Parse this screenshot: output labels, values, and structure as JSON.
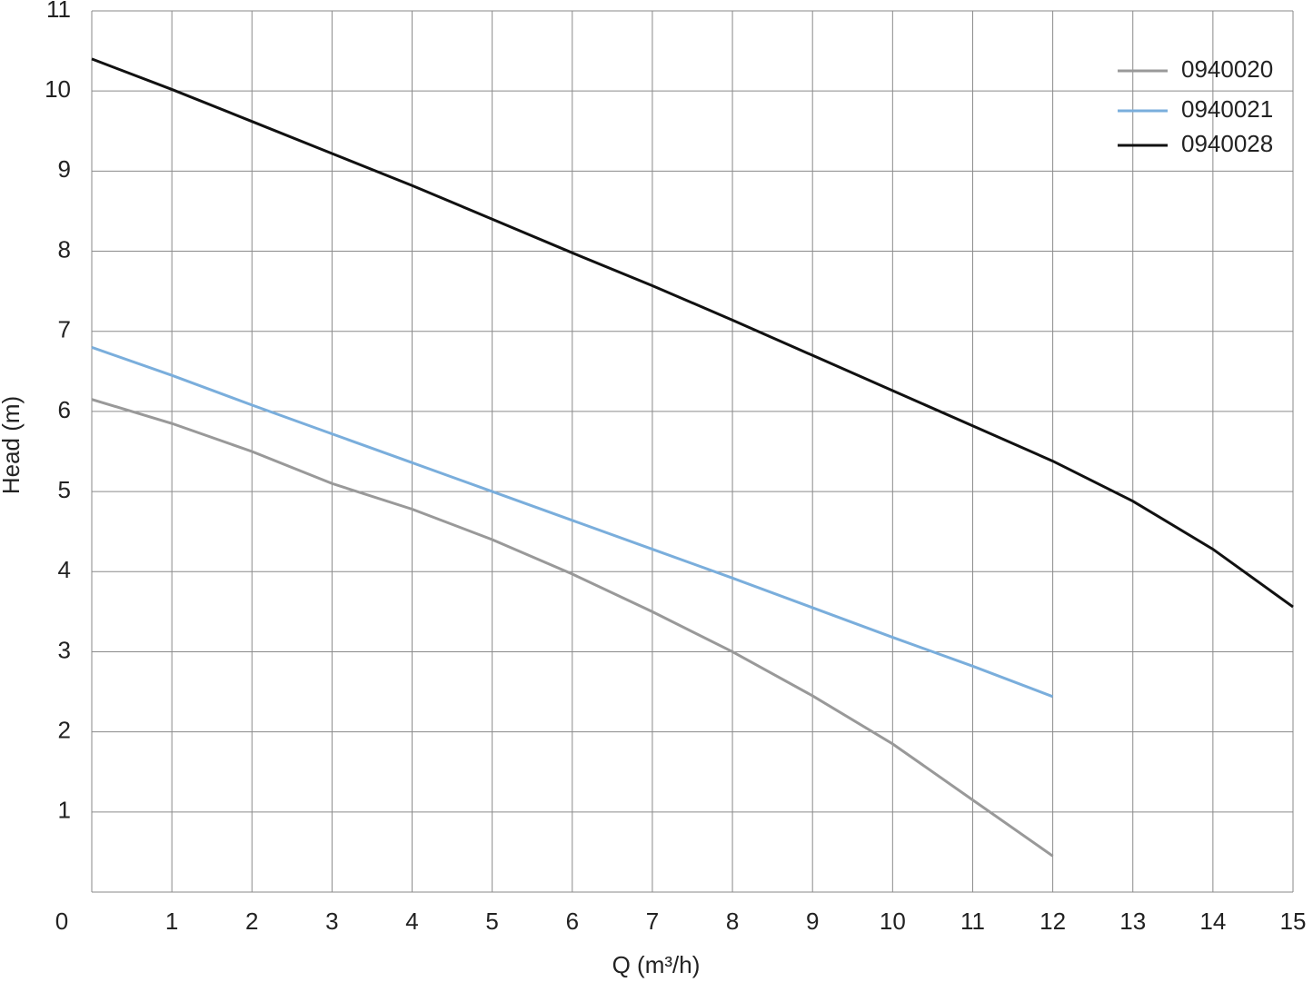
{
  "chart_data": {
    "type": "line",
    "x_label": "Q (m³/h)",
    "y_label": "Head (m)",
    "x": [
      0,
      1,
      2,
      3,
      4,
      5,
      6,
      7,
      8,
      9,
      10,
      11,
      12,
      13,
      14,
      15
    ],
    "series": [
      {
        "name": "0940020",
        "color": "#999999",
        "values": [
          6.15,
          5.85,
          5.5,
          5.1,
          4.78,
          4.4,
          3.97,
          3.5,
          3.0,
          2.45,
          1.85,
          1.15,
          0.45,
          null,
          null,
          null
        ]
      },
      {
        "name": "0940021",
        "color": "#7aaedc",
        "values": [
          6.8,
          6.45,
          6.08,
          5.72,
          5.36,
          5.0,
          4.64,
          4.28,
          3.92,
          3.55,
          3.18,
          2.82,
          2.44,
          null,
          null,
          null
        ]
      },
      {
        "name": "0940028",
        "color": "#111111",
        "values": [
          10.4,
          10.02,
          9.62,
          9.22,
          8.82,
          8.4,
          7.98,
          7.57,
          7.14,
          6.7,
          6.26,
          5.82,
          5.38,
          4.88,
          4.28,
          3.56
        ]
      }
    ],
    "xlim": [
      0,
      15
    ],
    "xticks": [
      0,
      1,
      2,
      3,
      4,
      5,
      6,
      7,
      8,
      9,
      10,
      11,
      12,
      13,
      14,
      15
    ],
    "ylim": [
      0,
      11
    ],
    "yticks": [
      1,
      2,
      3,
      4,
      5,
      6,
      7,
      8,
      9,
      10,
      11
    ],
    "grid": true,
    "legend": "upper right"
  }
}
